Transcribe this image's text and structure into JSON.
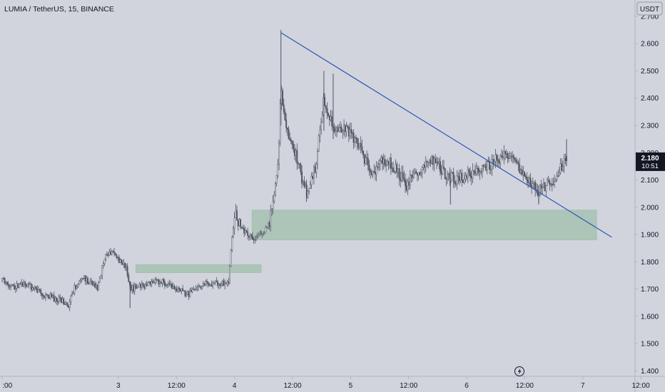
{
  "header": {
    "symbol_line": "LUMIA / TetherUS, 15, BINANCE",
    "currency_button": "USDT"
  },
  "price_label": {
    "price": "2.180",
    "countdown": "10:51"
  },
  "colors": {
    "background": "#d1d4dc",
    "candle": "#4f5561",
    "zone": "#8fb79a",
    "trendline": "#2f55b8",
    "price_badge": "#131722",
    "label_text": "#131722"
  },
  "icons": {
    "lightning": "lightning-icon"
  },
  "chart_data": {
    "type": "candlestick",
    "symbol": "LUMIA / TetherUS",
    "timeframe": "15",
    "exchange": "BINANCE",
    "ylim": [
      1.38,
      2.76
    ],
    "y_ticks": [
      "2.700",
      "2.600",
      "2.500",
      "2.400",
      "2.300",
      "2.200",
      "2.100",
      "2.000",
      "1.900",
      "1.800",
      "1.700",
      "1.600",
      "1.500",
      "1.400"
    ],
    "x_tick_labels": [
      ":00",
      "3",
      "12:00",
      "4",
      "12:00",
      "5",
      "12:00",
      "6",
      "12:00",
      "7",
      "12:00"
    ],
    "x_tick_values": [
      0,
      1,
      1.5,
      2,
      2.5,
      3,
      3.5,
      4,
      4.5,
      5,
      5.5
    ],
    "xlim": [
      -0.02,
      5.45
    ],
    "last_price": 2.18,
    "close_path": [
      {
        "t": 0.0,
        "p": 1.73
      },
      {
        "t": 0.08,
        "p": 1.71
      },
      {
        "t": 0.2,
        "p": 1.72
      },
      {
        "t": 0.35,
        "p": 1.68
      },
      {
        "t": 0.5,
        "p": 1.66
      },
      {
        "t": 0.57,
        "p": 1.64
      },
      {
        "t": 0.62,
        "p": 1.7
      },
      {
        "t": 0.7,
        "p": 1.74
      },
      {
        "t": 0.78,
        "p": 1.72
      },
      {
        "t": 0.82,
        "p": 1.7
      },
      {
        "t": 0.88,
        "p": 1.82
      },
      {
        "t": 0.95,
        "p": 1.84
      },
      {
        "t": 1.02,
        "p": 1.8
      },
      {
        "t": 1.07,
        "p": 1.78
      },
      {
        "t": 1.1,
        "p": 1.7
      },
      {
        "t": 1.2,
        "p": 1.71
      },
      {
        "t": 1.35,
        "p": 1.73
      },
      {
        "t": 1.5,
        "p": 1.7
      },
      {
        "t": 1.6,
        "p": 1.68
      },
      {
        "t": 1.75,
        "p": 1.72
      },
      {
        "t": 1.88,
        "p": 1.72
      },
      {
        "t": 1.95,
        "p": 1.73
      },
      {
        "t": 1.97,
        "p": 1.85
      },
      {
        "t": 2.0,
        "p": 1.98
      },
      {
        "t": 2.07,
        "p": 1.92
      },
      {
        "t": 2.18,
        "p": 1.88
      },
      {
        "t": 2.3,
        "p": 1.94
      },
      {
        "t": 2.38,
        "p": 2.18
      },
      {
        "t": 2.4,
        "p": 2.45
      },
      {
        "t": 2.44,
        "p": 2.28
      },
      {
        "t": 2.52,
        "p": 2.2
      },
      {
        "t": 2.62,
        "p": 2.05
      },
      {
        "t": 2.7,
        "p": 2.15
      },
      {
        "t": 2.77,
        "p": 2.4
      },
      {
        "t": 2.85,
        "p": 2.3
      },
      {
        "t": 3.0,
        "p": 2.28
      },
      {
        "t": 3.1,
        "p": 2.2
      },
      {
        "t": 3.18,
        "p": 2.12
      },
      {
        "t": 3.28,
        "p": 2.18
      },
      {
        "t": 3.4,
        "p": 2.14
      },
      {
        "t": 3.48,
        "p": 2.08
      },
      {
        "t": 3.55,
        "p": 2.12
      },
      {
        "t": 3.65,
        "p": 2.16
      },
      {
        "t": 3.72,
        "p": 2.18
      },
      {
        "t": 3.82,
        "p": 2.12
      },
      {
        "t": 3.92,
        "p": 2.1
      },
      {
        "t": 4.0,
        "p": 2.12
      },
      {
        "t": 4.1,
        "p": 2.14
      },
      {
        "t": 4.2,
        "p": 2.16
      },
      {
        "t": 4.3,
        "p": 2.18
      },
      {
        "t": 4.38,
        "p": 2.2
      },
      {
        "t": 4.45,
        "p": 2.14
      },
      {
        "t": 4.55,
        "p": 2.09
      },
      {
        "t": 4.62,
        "p": 2.06
      },
      {
        "t": 4.7,
        "p": 2.08
      },
      {
        "t": 4.78,
        "p": 2.12
      },
      {
        "t": 4.86,
        "p": 2.18
      }
    ],
    "annotations": [
      {
        "type": "zone",
        "t_start": 1.15,
        "t_end": 2.23,
        "p_low": 1.76,
        "p_high": 1.79
      },
      {
        "type": "zone",
        "t_start": 2.15,
        "t_end": 5.12,
        "p_low": 1.88,
        "p_high": 1.99
      },
      {
        "type": "trendline",
        "points": [
          [
            2.4,
            2.64
          ],
          [
            5.25,
            1.89
          ]
        ]
      }
    ]
  }
}
